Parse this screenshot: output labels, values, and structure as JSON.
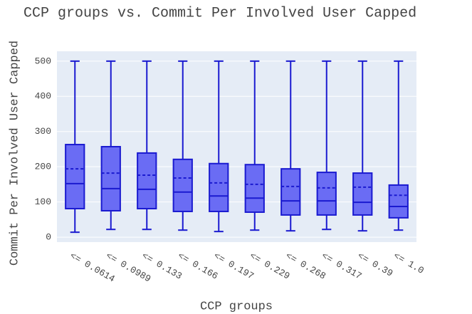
{
  "chart_data": {
    "type": "box",
    "title": "CCP groups vs. Commit Per Involved User Capped",
    "xlabel": "CCP groups",
    "ylabel": "Commit Per Involved User Capped",
    "categories": [
      "<= 0.0614",
      "<= 0.0989",
      "<= 0.133",
      "<= 0.166",
      "<= 0.197",
      "<= 0.229",
      "<= 0.268",
      "<= 0.317",
      "<= 0.39",
      "<= 1.0"
    ],
    "min": [
      14,
      22,
      22,
      20,
      16,
      20,
      18,
      22,
      18,
      20
    ],
    "q1": [
      81,
      75,
      81,
      73,
      73,
      71,
      63,
      63,
      63,
      55
    ],
    "median": [
      152,
      138,
      136,
      128,
      117,
      111,
      103,
      103,
      99,
      87
    ],
    "mean": [
      194,
      182,
      176,
      168,
      154,
      150,
      144,
      140,
      142,
      119
    ],
    "q3": [
      263,
      257,
      239,
      221,
      209,
      206,
      194,
      184,
      182,
      148
    ],
    "max": [
      500,
      500,
      500,
      500,
      500,
      500,
      500,
      500,
      500,
      500
    ],
    "color": "#1a1ad0",
    "fill": "#6a6cf4",
    "ylim": [
      -14,
      528
    ],
    "yticks": [
      0,
      100,
      200,
      300,
      400,
      500
    ],
    "grid": true
  }
}
